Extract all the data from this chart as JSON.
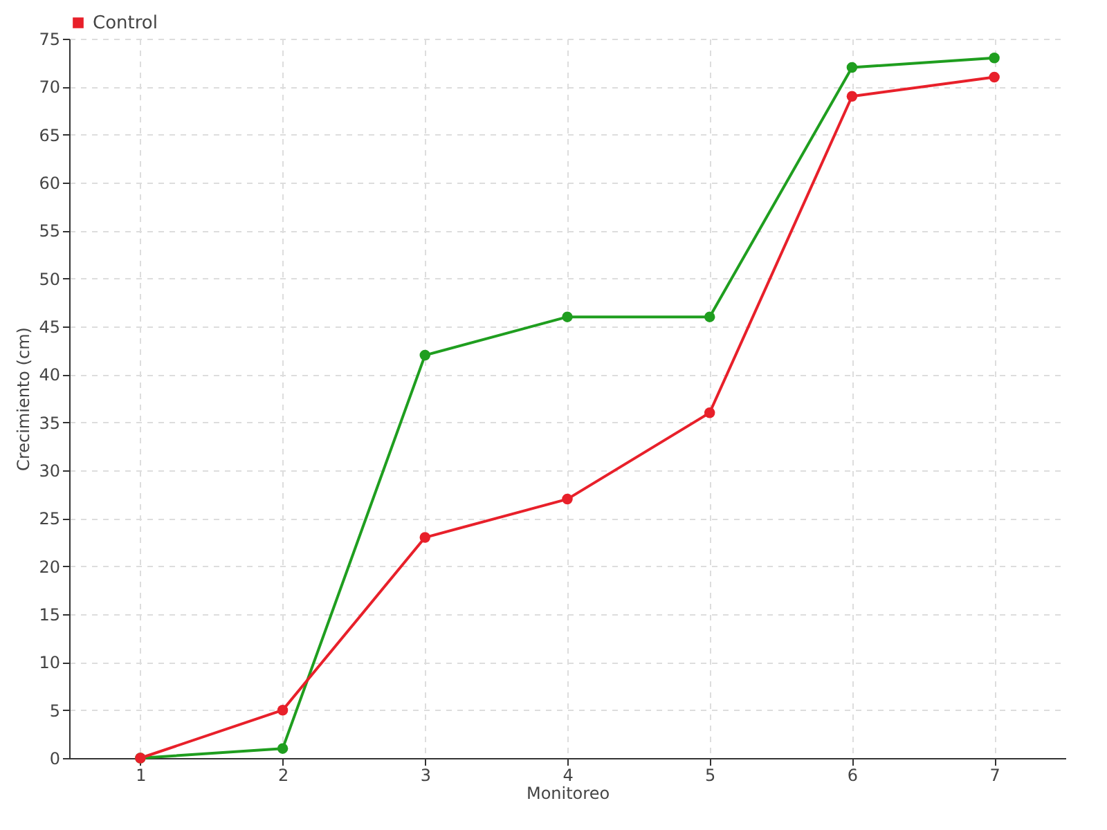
{
  "chart_data": {
    "type": "line",
    "xlabel": "Monitoreo",
    "ylabel": "Crecimiento (cm)",
    "categories": [
      "1",
      "2",
      "3",
      "4",
      "5",
      "6",
      "7"
    ],
    "series": [
      {
        "color": "#1f9e1f",
        "values": [
          0,
          1,
          42,
          46,
          46,
          72,
          73
        ]
      },
      {
        "name": "Control",
        "color": "#e8202a",
        "values": [
          0,
          5,
          23,
          27,
          36,
          69,
          71
        ]
      }
    ],
    "ylim": [
      0,
      75
    ],
    "yticks": [
      0,
      5,
      10,
      15,
      20,
      25,
      30,
      35,
      40,
      45,
      50,
      55,
      60,
      65,
      70,
      75
    ],
    "grid": true,
    "legend": "top left",
    "marker": "circle",
    "line_style": "solid"
  }
}
